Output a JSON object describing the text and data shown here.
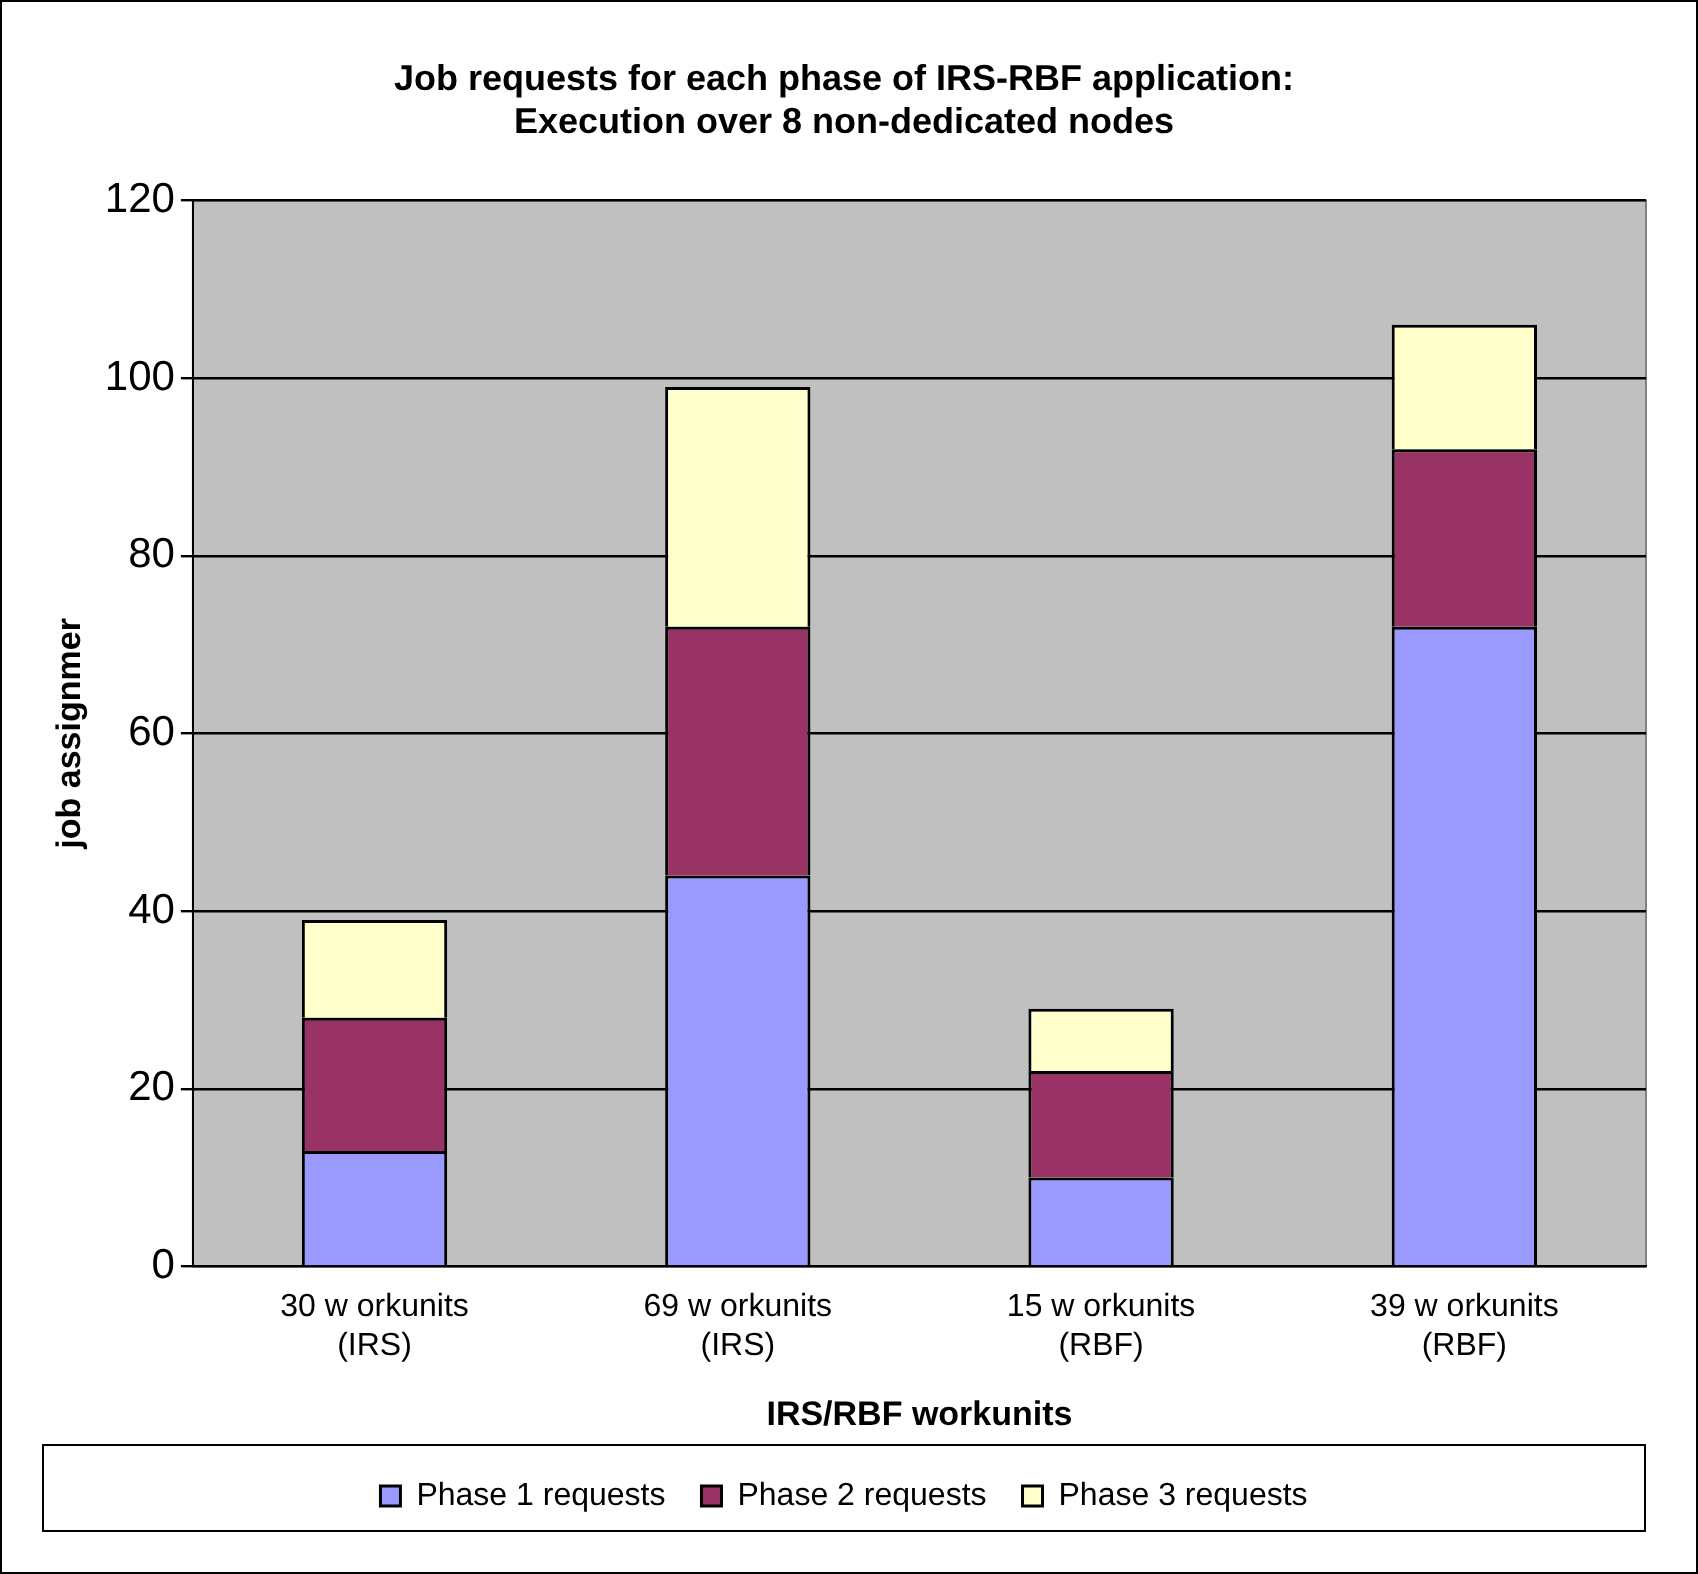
{
  "chart_data": {
    "type": "bar",
    "stacked": true,
    "title": [
      "Job requests for each phase of IRS-RBF application:",
      "Execution over 8 non-dedicated nodes"
    ],
    "xlabel": "IRS/RBF workunits",
    "ylabel": "job assignmer",
    "categories": [
      "30 w orkunits\n(IRS)",
      "69 w orkunits\n(IRS)",
      "15 w orkunits\n(RBF)",
      "39 w orkunits\n(RBF)"
    ],
    "series": [
      {
        "name": "Phase 1 requests",
        "color": "#9999ff",
        "values": [
          13,
          44,
          10,
          72
        ]
      },
      {
        "name": "Phase 2 requests",
        "color": "#993366",
        "values": [
          15,
          28,
          12,
          20
        ]
      },
      {
        "name": "Phase 3 requests",
        "color": "#ffffcc",
        "values": [
          11,
          27,
          7,
          14
        ]
      }
    ],
    "ylim": [
      0,
      120
    ],
    "yticks": [
      0,
      20,
      40,
      60,
      80,
      100,
      120
    ],
    "grid": "y",
    "legend": "bottom"
  }
}
